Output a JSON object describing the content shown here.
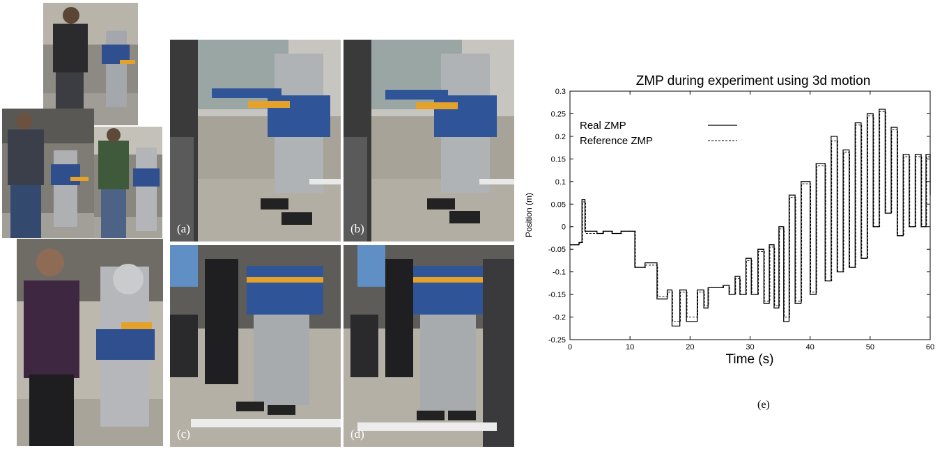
{
  "photos": {
    "left_stack": [
      {
        "name": "experiment-photo-1",
        "caption": ""
      },
      {
        "name": "experiment-photo-2",
        "caption": ""
      },
      {
        "name": "experiment-photo-3",
        "caption": ""
      },
      {
        "name": "experiment-photo-4",
        "caption": ""
      }
    ],
    "panels": [
      {
        "name": "panel-a",
        "caption": "(a)"
      },
      {
        "name": "panel-b",
        "caption": "(b)"
      },
      {
        "name": "panel-c",
        "caption": "(c)"
      },
      {
        "name": "panel-d",
        "caption": "(d)"
      }
    ]
  },
  "figure_label": "(e)",
  "chart_data": {
    "type": "line",
    "title": "ZMP during experiment using 3d motion",
    "xlabel": "Time (s)",
    "ylabel": "Position (m)",
    "xlim": [
      0,
      60
    ],
    "ylim": [
      -0.25,
      0.3
    ],
    "x_ticks": [
      0,
      10,
      20,
      30,
      40,
      50,
      60
    ],
    "y_ticks": [
      -0.25,
      -0.2,
      -0.15,
      -0.1,
      -0.05,
      0,
      0.05,
      0.1,
      0.15,
      0.2,
      0.25,
      0.3
    ],
    "y_tick_labels": [
      "-0.25",
      "-0.2",
      "-0.15",
      "-0.1",
      "-0.05",
      "0",
      "0.05",
      "0.1",
      "0.15",
      "0.2",
      "0.25",
      "0.3"
    ],
    "grid": false,
    "legend_position": "top-left",
    "series": [
      {
        "name": "Real ZMP",
        "style": "solid",
        "color": "#000000",
        "x": [
          0,
          1.5,
          2.0,
          2.5,
          4.5,
          5.5,
          7.0,
          8.5,
          10.5,
          10.8,
          12.5,
          14.0,
          14.5,
          16.2,
          17.0,
          18.3,
          19.4,
          21.2,
          22.3,
          23.0,
          25.5,
          26.5,
          27.5,
          28.3,
          29.3,
          30.2,
          31.3,
          32.3,
          33.2,
          34.0,
          34.8,
          35.6,
          36.5,
          37.5,
          38.5,
          40.0,
          41.0,
          42.5,
          43.5,
          44.5,
          45.5,
          46.5,
          47.5,
          48.5,
          49.5,
          50.5,
          51.5,
          52.5,
          53.5,
          54.5,
          55.5,
          56.5,
          57.5,
          58.5,
          59.3,
          60
        ],
        "y": [
          -0.04,
          -0.035,
          0.06,
          -0.01,
          -0.015,
          -0.01,
          -0.015,
          -0.01,
          -0.01,
          -0.09,
          -0.08,
          -0.08,
          -0.16,
          -0.14,
          -0.22,
          -0.14,
          -0.21,
          -0.14,
          -0.18,
          -0.135,
          -0.13,
          -0.15,
          -0.11,
          -0.15,
          -0.07,
          -0.15,
          -0.05,
          -0.17,
          -0.04,
          -0.18,
          0.0,
          -0.21,
          0.07,
          -0.17,
          0.1,
          -0.15,
          0.14,
          -0.12,
          0.2,
          -0.1,
          0.17,
          -0.09,
          0.23,
          -0.07,
          0.25,
          0.0,
          0.26,
          0.03,
          0.22,
          -0.02,
          0.16,
          0.0,
          0.16,
          0.0,
          0.16,
          0.07
        ]
      },
      {
        "name": "Reference ZMP",
        "style": "dashed",
        "color": "#000000",
        "x": [
          0,
          1.6,
          2.1,
          2.6,
          4.6,
          5.6,
          7.1,
          8.6,
          10.6,
          10.9,
          12.6,
          14.1,
          14.6,
          16.3,
          17.1,
          18.4,
          19.5,
          21.3,
          22.4,
          23.1,
          25.6,
          26.6,
          27.6,
          28.4,
          29.4,
          30.3,
          31.4,
          32.4,
          33.3,
          34.1,
          34.9,
          35.7,
          36.6,
          37.6,
          38.6,
          40.1,
          41.1,
          42.6,
          43.6,
          44.6,
          45.6,
          46.6,
          47.6,
          48.6,
          49.6,
          50.6,
          51.6,
          52.6,
          53.6,
          54.6,
          55.6,
          56.6,
          57.6,
          58.6,
          59.4,
          60
        ],
        "y": [
          -0.04,
          -0.035,
          0.055,
          -0.015,
          -0.015,
          -0.01,
          -0.015,
          -0.01,
          -0.01,
          -0.09,
          -0.085,
          -0.085,
          -0.155,
          -0.145,
          -0.21,
          -0.145,
          -0.2,
          -0.145,
          -0.175,
          -0.135,
          -0.13,
          -0.15,
          -0.115,
          -0.15,
          -0.075,
          -0.15,
          -0.055,
          -0.165,
          -0.045,
          -0.175,
          -0.005,
          -0.2,
          0.065,
          -0.165,
          0.095,
          -0.145,
          0.135,
          -0.12,
          0.19,
          -0.1,
          0.165,
          -0.09,
          0.225,
          -0.07,
          0.245,
          0.0,
          0.255,
          0.03,
          0.215,
          -0.02,
          0.155,
          0.0,
          0.155,
          0.0,
          0.155,
          0.065
        ]
      }
    ]
  }
}
